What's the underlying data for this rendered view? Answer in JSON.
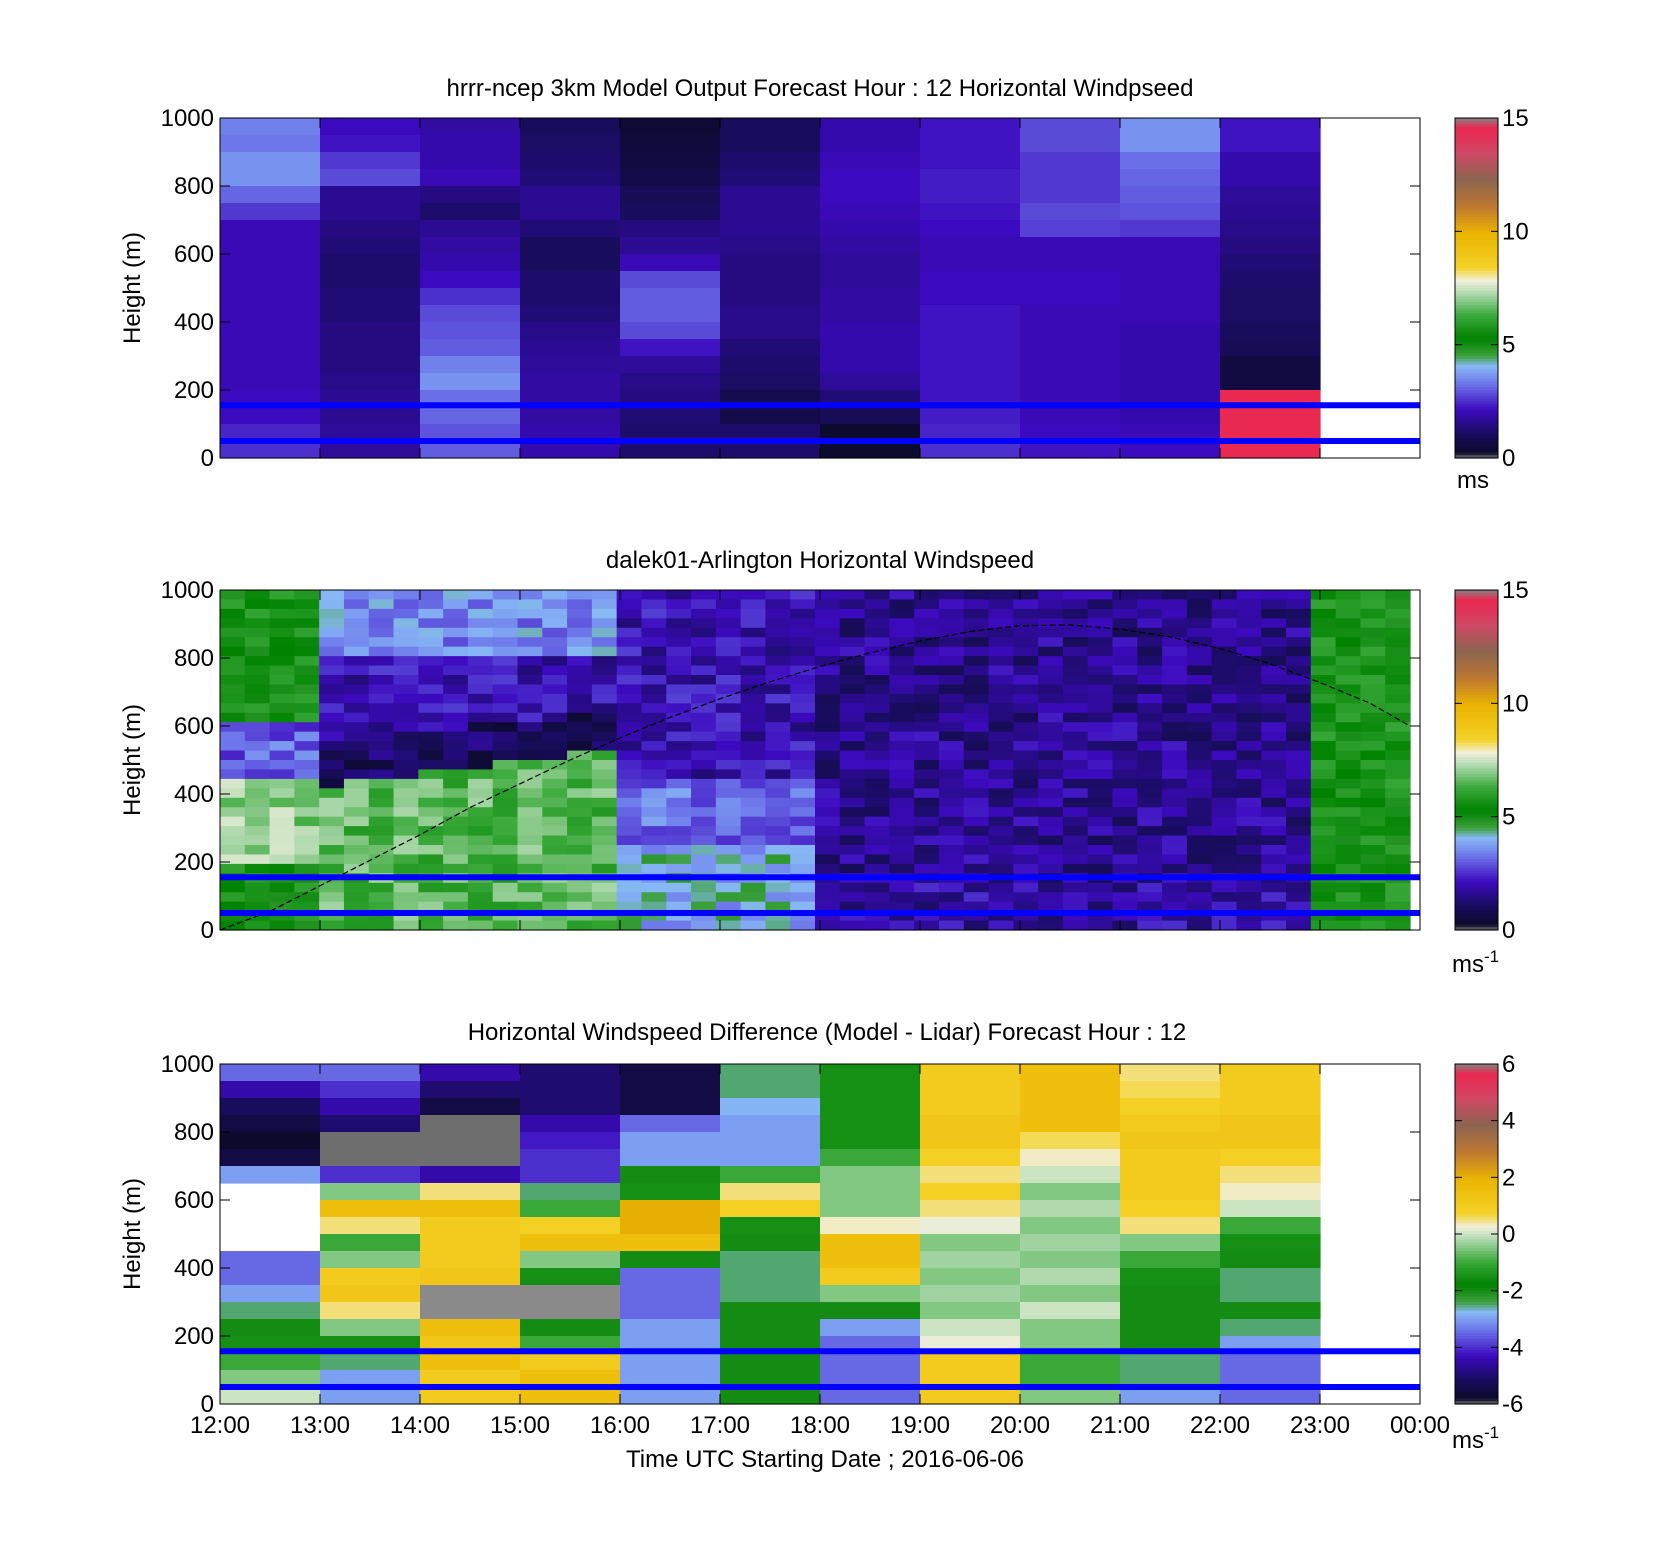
{
  "x_axis": {
    "ticks": [
      "12:00",
      "13:00",
      "14:00",
      "15:00",
      "16:00",
      "17:00",
      "18:00",
      "19:00",
      "20:00",
      "21:00",
      "22:00",
      "23:00",
      "00:00"
    ],
    "label": "Time UTC  Starting Date ; 2016-06-06"
  },
  "chart_data": [
    {
      "type": "heatmap",
      "title": "hrrr-ncep 3km Model Output   Forecast Hour : 12 Horizontal Windpseed",
      "ylabel": "Height (m)",
      "yticks": [
        "0",
        "200",
        "400",
        "600",
        "800",
        "1000"
      ],
      "ylim": [
        0,
        1000
      ],
      "xlim": [
        "12:00",
        "00:00"
      ],
      "rows": 20,
      "colorbar": {
        "ticks": [
          "0",
          "5",
          "10",
          "15"
        ],
        "range": [
          0,
          15
        ],
        "unit": "ms",
        "unit_sup": ""
      },
      "reference_lines_m": [
        50,
        155
      ],
      "values": [
        [
          3.4,
          2.1,
          1.8,
          1.0,
          0.4,
          1.0,
          1.9,
          2.2,
          2.8,
          3.6,
          2.2
        ],
        [
          3.3,
          2.2,
          1.9,
          1.1,
          0.5,
          1.0,
          1.9,
          2.2,
          2.8,
          3.6,
          2.2
        ],
        [
          3.6,
          2.6,
          1.9,
          1.2,
          0.6,
          1.2,
          2.0,
          2.2,
          2.6,
          3.2,
          1.9
        ],
        [
          3.6,
          2.8,
          2.0,
          1.3,
          0.7,
          1.3,
          2.1,
          2.3,
          2.6,
          3.1,
          1.9
        ],
        [
          3.1,
          1.6,
          1.4,
          1.6,
          0.9,
          1.6,
          2.1,
          2.3,
          2.6,
          3.0,
          1.7
        ],
        [
          2.6,
          1.6,
          1.2,
          1.6,
          1.0,
          1.6,
          2.0,
          2.2,
          2.8,
          2.9,
          1.6
        ],
        [
          2.0,
          1.4,
          1.6,
          1.3,
          1.4,
          1.6,
          1.9,
          2.1,
          2.7,
          2.6,
          1.5
        ],
        [
          2.0,
          1.3,
          1.8,
          1.0,
          1.6,
          1.5,
          1.8,
          2.0,
          2.0,
          2.0,
          1.4
        ],
        [
          2.0,
          1.2,
          1.9,
          1.0,
          2.0,
          1.4,
          1.7,
          2.0,
          2.0,
          2.0,
          1.3
        ],
        [
          2.0,
          1.2,
          2.1,
          1.2,
          2.8,
          1.4,
          1.7,
          2.1,
          2.1,
          2.0,
          1.2
        ],
        [
          2.0,
          1.3,
          2.5,
          1.2,
          3.0,
          1.4,
          1.8,
          2.1,
          2.1,
          2.0,
          1.1
        ],
        [
          2.0,
          1.3,
          2.8,
          1.3,
          3.0,
          1.5,
          1.8,
          2.2,
          2.0,
          2.0,
          1.1
        ],
        [
          2.0,
          1.4,
          2.9,
          1.5,
          2.8,
          1.5,
          1.9,
          2.2,
          2.0,
          1.9,
          1.0
        ],
        [
          2.0,
          1.4,
          3.0,
          1.6,
          2.2,
          1.3,
          1.9,
          2.2,
          2.0,
          1.9,
          0.9
        ],
        [
          2.0,
          1.4,
          3.4,
          1.7,
          1.7,
          1.2,
          1.9,
          2.2,
          2.0,
          1.9,
          0.6
        ],
        [
          2.0,
          1.5,
          3.6,
          1.8,
          1.5,
          1.1,
          1.7,
          2.2,
          2.0,
          1.9,
          0.6
        ],
        [
          2.1,
          1.6,
          3.2,
          1.8,
          1.4,
          0.8,
          1.3,
          2.2,
          2.0,
          1.9,
          14.5
        ],
        [
          2.1,
          1.6,
          3.1,
          1.8,
          1.3,
          0.7,
          0.9,
          2.3,
          2.0,
          1.9,
          14.5
        ],
        [
          2.4,
          1.7,
          2.9,
          1.9,
          1.2,
          1.2,
          0.3,
          2.4,
          2.1,
          2.0,
          14.5
        ],
        [
          2.5,
          1.7,
          3.0,
          1.9,
          1.2,
          1.2,
          0.3,
          2.5,
          2.2,
          2.1,
          14.5
        ]
      ]
    },
    {
      "type": "heatmap",
      "title": "dalek01-Arlington  Horizontal Windspeed",
      "ylabel": "Height (m)",
      "yticks": [
        "0",
        "200",
        "400",
        "600",
        "800",
        "1000"
      ],
      "ylim": [
        0,
        1000
      ],
      "xlim": [
        "12:00",
        "00:00"
      ],
      "rows": 36,
      "colorbar": {
        "ticks": [
          "0",
          "5",
          "10",
          "15"
        ],
        "range": [
          0,
          15
        ],
        "unit": "ms",
        "unit_sup": "-1"
      },
      "reference_lines_m": [
        50,
        155
      ],
      "curve_height_m": [
        [
          12.0,
          0
        ],
        [
          12.5,
          55
        ],
        [
          13.0,
          130
        ],
        [
          13.5,
          205
        ],
        [
          14.0,
          280
        ],
        [
          14.5,
          360
        ],
        [
          15.0,
          430
        ],
        [
          15.5,
          500
        ],
        [
          16.0,
          565
        ],
        [
          16.5,
          625
        ],
        [
          17.0,
          680
        ],
        [
          17.5,
          730
        ],
        [
          18.0,
          775
        ],
        [
          18.5,
          815
        ],
        [
          19.0,
          850
        ],
        [
          19.5,
          878
        ],
        [
          20.0,
          895
        ],
        [
          20.5,
          897
        ],
        [
          21.0,
          885
        ],
        [
          21.5,
          862
        ],
        [
          22.0,
          828
        ],
        [
          22.5,
          783
        ],
        [
          23.0,
          728
        ],
        [
          23.5,
          667
        ],
        [
          23.9,
          600
        ]
      ]
    },
    {
      "type": "heatmap",
      "title": "Horizontal Windspeed Difference (Model - Lidar) Forecast Hour : 12",
      "ylabel": "Height (m)",
      "yticks": [
        "0",
        "200",
        "400",
        "600",
        "800",
        "1000"
      ],
      "ylim": [
        0,
        1000
      ],
      "xlim": [
        "12:00",
        "00:00"
      ],
      "rows": 20,
      "colorbar": {
        "ticks": [
          "-6",
          "-4",
          "-2",
          "0",
          "2",
          "4",
          "6"
        ],
        "range": [
          -6,
          6
        ],
        "unit": "ms",
        "unit_sup": "-1"
      },
      "reference_lines_m": [
        50,
        155
      ],
      "values": [
        [
          -3.5,
          -3.5,
          -4.5,
          -5.0,
          -5.5,
          -2.5,
          -1.5,
          1.0,
          1.5,
          0.5,
          1.0
        ],
        [
          -4.5,
          -4.0,
          -5.0,
          -5.0,
          -5.5,
          -2.5,
          -1.5,
          1.0,
          1.5,
          0.6,
          1.0
        ],
        [
          -5.2,
          -4.5,
          -5.5,
          -5.0,
          -5.5,
          -2.8,
          -1.5,
          1.0,
          1.5,
          0.8,
          1.0
        ],
        [
          -5.5,
          -5.0,
          -6.0,
          -4.5,
          -3.5,
          -3.0,
          -1.5,
          1.2,
          1.5,
          1.0,
          1.2
        ],
        [
          -5.8,
          -6.0,
          -6.0,
          -4.2,
          -3.0,
          -3.0,
          -1.5,
          1.2,
          0.6,
          1.2,
          1.2
        ],
        [
          -5.5,
          -6.0,
          -6.0,
          -4.0,
          -3.0,
          -3.0,
          -1.0,
          0.8,
          0.3,
          1.0,
          0.8
        ],
        [
          -3.0,
          -4.0,
          -4.5,
          -4.0,
          -2.0,
          -1.0,
          -0.5,
          0.5,
          0.0,
          1.0,
          0.5
        ],
        [
          null,
          -0.5,
          0.5,
          -2.5,
          -1.5,
          0.5,
          -0.5,
          0.8,
          -0.5,
          1.0,
          0.3
        ],
        [
          null,
          1.5,
          1.5,
          -1.0,
          2.0,
          0.8,
          -0.5,
          0.5,
          -0.2,
          0.8,
          0.0
        ],
        [
          null,
          0.5,
          1.0,
          0.8,
          2.0,
          -1.5,
          0.3,
          0.2,
          -0.5,
          0.5,
          -1.0
        ],
        [
          null,
          -1.0,
          1.0,
          1.5,
          1.5,
          -2.0,
          1.5,
          -0.5,
          -0.3,
          -0.5,
          -1.5
        ],
        [
          -3.5,
          -0.5,
          1.0,
          -0.5,
          -2.0,
          -2.5,
          1.5,
          -0.3,
          -0.5,
          -1.0,
          -2.0
        ],
        [
          -3.5,
          1.0,
          1.2,
          -1.5,
          -3.5,
          -2.5,
          1.0,
          -0.5,
          -0.2,
          -1.5,
          -2.5
        ],
        [
          -3.0,
          1.2,
          1.5,
          -1.5,
          -3.5,
          -2.5,
          -0.5,
          -0.3,
          -0.5,
          -2.0,
          -2.5
        ],
        [
          -2.5,
          0.5,
          2.0,
          -2.0,
          -3.5,
          -2.0,
          -2.0,
          -0.5,
          0.0,
          -2.0,
          -2.0
        ],
        [
          -2.0,
          -0.5,
          1.5,
          -2.0,
          -3.0,
          -2.0,
          -3.0,
          0.0,
          -0.5,
          -2.0,
          -2.5
        ],
        [
          -1.5,
          -1.5,
          1.2,
          -1.0,
          -3.0,
          -2.0,
          -3.5,
          0.2,
          -0.5,
          -2.0,
          -3.0
        ],
        [
          -1.0,
          -2.5,
          1.5,
          1.0,
          -3.0,
          -2.0,
          -3.5,
          1.0,
          -1.0,
          -2.5,
          -3.5
        ],
        [
          -0.5,
          -3.0,
          1.0,
          1.5,
          -3.0,
          -2.0,
          -3.5,
          1.0,
          -1.0,
          -2.5,
          -3.5
        ],
        [
          0.0,
          -3.0,
          1.0,
          1.5,
          -3.0,
          -2.0,
          -3.5,
          1.0,
          -0.5,
          -3.0,
          -3.5
        ]
      ],
      "gray_cells": [
        [
          13,
          2
        ],
        [
          13,
          3
        ],
        [
          14,
          2
        ],
        [
          14,
          3
        ]
      ]
    }
  ]
}
